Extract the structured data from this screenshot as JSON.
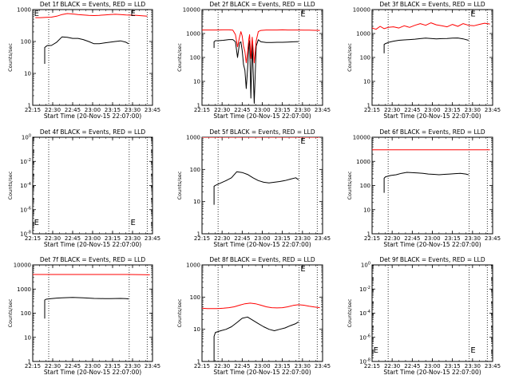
{
  "figure": {
    "x_tick_labels": [
      "22:15",
      "22:30",
      "22:45",
      "23:00",
      "23:15",
      "23:30",
      "23:45"
    ],
    "xlabel": "Start Time (20-Nov-15 22:07:00)",
    "ylabel": "Counts/sec",
    "colors": {
      "events": "#000000",
      "lld": "#ff0000",
      "axes": "#000000",
      "background": "#ffffff"
    }
  },
  "chart_data": [
    {
      "type": "line",
      "title": "Det 1f BLACK = Events, RED = LLD",
      "yscale": "log",
      "ylim": [
        1,
        1000
      ],
      "y_tick_labels": [
        "1",
        "10",
        "100",
        "1000"
      ],
      "xlim_minutes": [
        8,
        98
      ],
      "vlines_minutes": [
        20,
        80.5,
        94
      ],
      "markers": [
        {
          "text": "E",
          "x_minute": 9,
          "y": 800
        },
        {
          "text": "E",
          "x_minute": 81.5,
          "y": 800
        }
      ],
      "series": [
        {
          "key": "events",
          "x_minutes": [
            17,
            17,
            18,
            19,
            22,
            26,
            30,
            34,
            38,
            42,
            46,
            50,
            54,
            58,
            62,
            66,
            70,
            74,
            78,
            80
          ],
          "values": [
            20,
            65,
            70,
            75,
            75,
            95,
            140,
            135,
            125,
            125,
            115,
            100,
            85,
            85,
            90,
            95,
            100,
            105,
            95,
            85
          ]
        },
        {
          "key": "lld",
          "x_minutes": [
            10,
            14,
            18,
            22,
            26,
            30,
            34,
            38,
            42,
            46,
            50,
            54,
            58,
            62,
            66,
            70,
            74,
            78,
            82,
            86,
            90,
            94
          ],
          "values": [
            560,
            560,
            570,
            580,
            620,
            700,
            750,
            730,
            700,
            680,
            660,
            650,
            660,
            680,
            700,
            710,
            700,
            680,
            670,
            660,
            640,
            620
          ]
        }
      ]
    },
    {
      "type": "line",
      "title": "Det 2f BLACK = Events, RED = LLD",
      "yscale": "log",
      "ylim": [
        1,
        10000
      ],
      "y_tick_labels": [
        "1",
        "10",
        "100",
        "1000",
        "10000"
      ],
      "xlim_minutes": [
        8,
        98
      ],
      "vlines_minutes": [
        20,
        80.5,
        94
      ],
      "markers": [
        {
          "text": "E",
          "x_minute": 81.5,
          "y": 7000
        }
      ],
      "series": [
        {
          "key": "events",
          "x_minutes": [
            17,
            17,
            18,
            20,
            24,
            28,
            31,
            33,
            34.5,
            36,
            37,
            38,
            39,
            40,
            41,
            42,
            43,
            43.5,
            44.5,
            45.5,
            47,
            48.5,
            50,
            52,
            56,
            60,
            64,
            68,
            72,
            76,
            80
          ],
          "values": [
            250,
            450,
            500,
            500,
            520,
            560,
            560,
            450,
            100,
            400,
            450,
            200,
            50,
            30,
            5,
            30,
            350,
            500,
            2,
            400,
            1.2,
            300,
            550,
            450,
            420,
            420,
            430,
            430,
            440,
            450,
            460
          ]
        },
        {
          "key": "lld",
          "x_minutes": [
            8,
            12,
            16,
            20,
            24,
            28,
            31,
            33,
            34.5,
            36,
            37,
            38,
            39,
            40,
            41,
            42,
            43,
            43.5,
            44.5,
            45.5,
            47,
            48.5,
            50,
            52,
            56,
            60,
            64,
            68,
            72,
            76,
            80,
            84,
            88,
            92,
            96
          ],
          "values": [
            1400,
            1400,
            1400,
            1400,
            1420,
            1420,
            1380,
            900,
            280,
            700,
            1200,
            800,
            300,
            180,
            60,
            160,
            600,
            900,
            90,
            700,
            60,
            500,
            1200,
            1350,
            1400,
            1400,
            1400,
            1420,
            1400,
            1400,
            1400,
            1380,
            1380,
            1360,
            1350
          ]
        }
      ]
    },
    {
      "type": "line",
      "title": "Det 3f BLACK = Events, RED = LLD",
      "yscale": "log",
      "ylim": [
        1,
        10000
      ],
      "y_tick_labels": [
        "1",
        "10",
        "100",
        "1000",
        "10000"
      ],
      "xlim_minutes": [
        8,
        98
      ],
      "vlines_minutes": [
        20,
        80.5,
        94
      ],
      "markers": [
        {
          "text": "E",
          "x_minute": 81.5,
          "y": 7000
        }
      ],
      "series": [
        {
          "key": "events",
          "x_minutes": [
            17,
            17,
            18,
            21,
            24,
            28,
            32,
            36,
            40,
            44,
            48,
            52,
            56,
            60,
            64,
            68,
            72,
            76,
            80
          ],
          "values": [
            150,
            350,
            380,
            440,
            480,
            520,
            540,
            560,
            580,
            610,
            640,
            620,
            600,
            610,
            620,
            640,
            650,
            600,
            520
          ]
        },
        {
          "key": "lld",
          "x_minutes": [
            8,
            11,
            14,
            17,
            20,
            24,
            28,
            32,
            36,
            40,
            44,
            48,
            52,
            56,
            60,
            64,
            68,
            72,
            76,
            80,
            84,
            88,
            92,
            96
          ],
          "values": [
            1700,
            1500,
            2000,
            1600,
            1800,
            1900,
            1700,
            2100,
            1800,
            2200,
            2600,
            2200,
            2800,
            2300,
            2100,
            1900,
            2400,
            2000,
            2600,
            2200,
            2100,
            2400,
            2700,
            2500
          ]
        }
      ]
    },
    {
      "type": "line",
      "title": "Det 4f BLACK = Events, RED = LLD",
      "yscale": "log",
      "ylim": [
        1e-08,
        1
      ],
      "y_tick_labels": [
        "10^-8",
        "10^-6",
        "10^-4",
        "10^-2",
        "10^0"
      ],
      "xlim_minutes": [
        8,
        98
      ],
      "vlines_minutes": [
        20,
        80.5,
        94
      ],
      "markers": [
        {
          "text": "E",
          "x_minute": 9,
          "y": 1e-07
        },
        {
          "text": "E",
          "x_minute": 81.5,
          "y": 1e-07
        }
      ],
      "series": []
    },
    {
      "type": "line",
      "title": "Det 5f BLACK = Events, RED = LLD",
      "yscale": "log",
      "ylim": [
        1,
        1000
      ],
      "y_tick_labels": [
        "1",
        "10",
        "100",
        "1000"
      ],
      "xlim_minutes": [
        8,
        98
      ],
      "vlines_minutes": [
        20,
        80.5,
        94
      ],
      "markers": [
        {
          "text": "E",
          "x_minute": 81.5,
          "y": 800
        }
      ],
      "series": [
        {
          "key": "events",
          "x_minutes": [
            17,
            17,
            18,
            22,
            26,
            30,
            34,
            38,
            42,
            46,
            50,
            54,
            58,
            62,
            66,
            70,
            74,
            78,
            80
          ],
          "values": [
            8,
            30,
            32,
            38,
            45,
            55,
            85,
            80,
            70,
            55,
            45,
            40,
            38,
            40,
            42,
            45,
            50,
            55,
            48
          ]
        },
        {
          "key": "lld",
          "x_minutes": [
            8,
            20,
            40,
            60,
            80,
            96
          ],
          "values": [
            1000,
            1000,
            1000,
            1000,
            1000,
            1000
          ]
        }
      ]
    },
    {
      "type": "line",
      "title": "Det 6f BLACK = Events, RED = LLD",
      "yscale": "log",
      "ylim": [
        1,
        10000
      ],
      "y_tick_labels": [
        "1",
        "10",
        "100",
        "1000",
        "10000"
      ],
      "xlim_minutes": [
        8,
        98
      ],
      "vlines_minutes": [
        20,
        80.5,
        94
      ],
      "markers": [],
      "series": [
        {
          "key": "events",
          "x_minutes": [
            17,
            17,
            18,
            22,
            26,
            30,
            34,
            38,
            42,
            46,
            50,
            54,
            58,
            62,
            66,
            70,
            74,
            78,
            80
          ],
          "values": [
            50,
            200,
            230,
            260,
            280,
            320,
            350,
            340,
            330,
            320,
            300,
            290,
            280,
            290,
            300,
            310,
            320,
            300,
            280
          ]
        },
        {
          "key": "lld",
          "x_minutes": [
            8,
            20,
            40,
            60,
            80,
            96
          ],
          "values": [
            3000,
            3000,
            3000,
            3000,
            3000,
            3000
          ]
        }
      ]
    },
    {
      "type": "line",
      "title": "Det 7f BLACK = Events, RED = LLD",
      "yscale": "log",
      "ylim": [
        1,
        10000
      ],
      "y_tick_labels": [
        "1",
        "10",
        "100",
        "1000",
        "10000"
      ],
      "xlim_minutes": [
        8,
        98
      ],
      "vlines_minutes": [
        20,
        80.5,
        94
      ],
      "markers": [],
      "series": [
        {
          "key": "events",
          "x_minutes": [
            17,
            17,
            18,
            22,
            26,
            30,
            34,
            38,
            42,
            46,
            50,
            54,
            58,
            62,
            66,
            70,
            74,
            78,
            80
          ],
          "values": [
            60,
            350,
            380,
            400,
            420,
            430,
            440,
            450,
            440,
            430,
            420,
            410,
            405,
            400,
            400,
            405,
            410,
            400,
            390
          ]
        },
        {
          "key": "lld",
          "x_minutes": [
            8,
            20,
            40,
            60,
            80,
            96
          ],
          "values": [
            4000,
            4000,
            4000,
            4000,
            4000,
            3900
          ]
        }
      ]
    },
    {
      "type": "line",
      "title": "Det 8f BLACK = Events, RED = LLD",
      "yscale": "log",
      "ylim": [
        1,
        1000
      ],
      "y_tick_labels": [
        "1",
        "10",
        "100",
        "1000"
      ],
      "xlim_minutes": [
        8,
        98
      ],
      "vlines_minutes": [
        20,
        80.5,
        94
      ],
      "markers": [
        {
          "text": "E",
          "x_minute": 81.5,
          "y": 800
        }
      ],
      "series": [
        {
          "key": "events",
          "x_minutes": [
            17,
            17,
            18,
            22,
            26,
            30,
            34,
            38,
            42,
            46,
            50,
            54,
            58,
            62,
            66,
            70,
            74,
            78,
            80
          ],
          "values": [
            1,
            6,
            8,
            9,
            10,
            12,
            16,
            22,
            24,
            19,
            15,
            12,
            10,
            9,
            10,
            11,
            13,
            15,
            17
          ]
        },
        {
          "key": "lld",
          "x_minutes": [
            8,
            12,
            16,
            20,
            24,
            28,
            32,
            36,
            40,
            44,
            48,
            52,
            56,
            60,
            64,
            68,
            72,
            76,
            80,
            84,
            88,
            92,
            96
          ],
          "values": [
            45,
            44,
            44,
            44,
            45,
            47,
            50,
            56,
            62,
            65,
            62,
            56,
            50,
            47,
            46,
            47,
            50,
            55,
            58,
            56,
            52,
            49,
            47
          ]
        }
      ]
    },
    {
      "type": "line",
      "title": "Det 9f BLACK = Events, RED = LLD",
      "yscale": "log",
      "ylim": [
        1e-08,
        1
      ],
      "y_tick_labels": [
        "10^-8",
        "10^-6",
        "10^-4",
        "10^-2",
        "10^0"
      ],
      "xlim_minutes": [
        8,
        98
      ],
      "vlines_minutes": [
        20,
        80.5,
        94
      ],
      "markers": [
        {
          "text": "E",
          "x_minute": 9,
          "y": 1e-07
        },
        {
          "text": "E",
          "x_minute": 81.5,
          "y": 1e-07
        }
      ],
      "series": []
    }
  ]
}
